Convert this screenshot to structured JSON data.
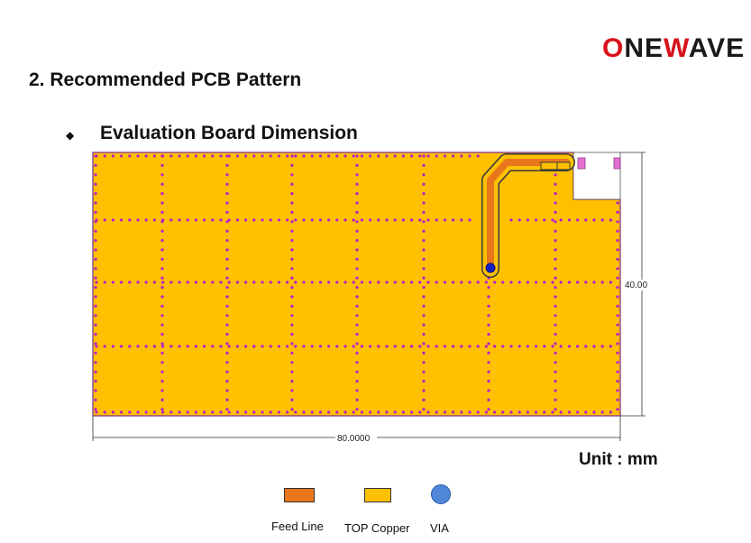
{
  "logo": {
    "part1": "O",
    "part2": "NE",
    "part3": "W",
    "part4": "AVE"
  },
  "heading": "2. Recommended PCB Pattern",
  "subheading": "Evaluation Board Dimension",
  "bullet": "◆",
  "dimensions": {
    "height_label": "40.00",
    "width_label": "80.0000"
  },
  "unit_label": "Unit : mm",
  "legend": [
    {
      "label": "Feed Line",
      "color": "#e8761a"
    },
    {
      "label": "TOP Copper",
      "color": "#ffc000"
    },
    {
      "label": "VIA",
      "color": "#4f86d8"
    }
  ],
  "colors": {
    "copper": "#ffc000",
    "feed": "#e8761a",
    "via_dot": "#b81fc9",
    "via": "#1522c6",
    "accent": "#d7121b"
  }
}
